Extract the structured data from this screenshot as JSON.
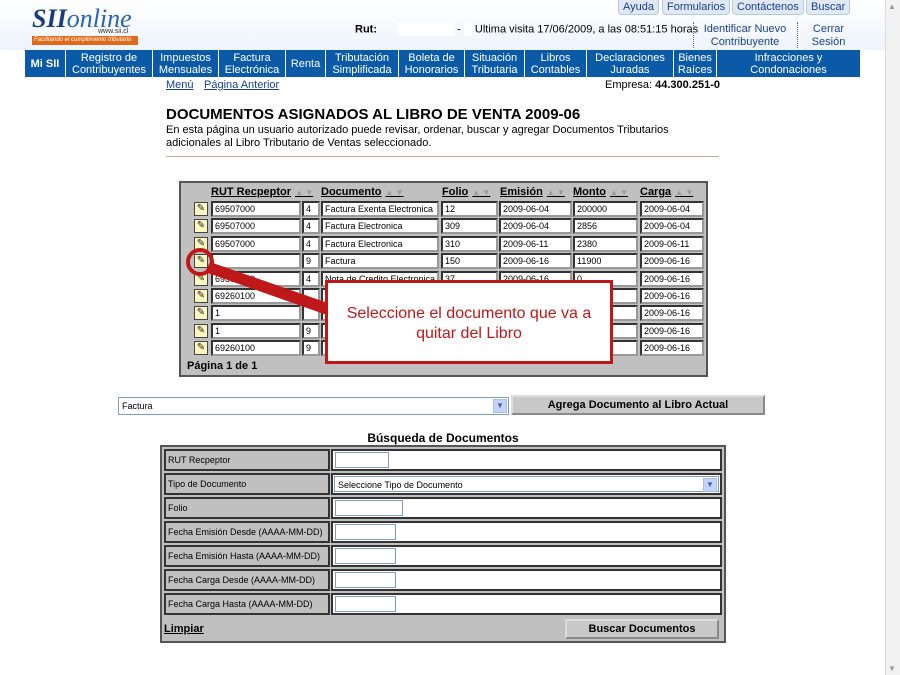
{
  "header": {
    "logo_text": "SII online",
    "logo_site": "www.sii.cl",
    "logo_tagline": "Facilitando el cumplimiento tributario",
    "top_links": [
      "Ayuda",
      "Formularios",
      "Contáctenos",
      "Buscar"
    ],
    "rut_label": "Rut:",
    "rut_sep": "-",
    "last_visit": "Ultima visita 17/06/2009, a las 08:51:15 horas",
    "identify_new": "Identificar Nuevo Contribuyente",
    "logout": "Cerrar Sesión"
  },
  "nav": [
    "Mi SII",
    "Registro de Contribuyentes",
    "Impuestos Mensuales",
    "Factura Electrónica",
    "Renta",
    "Tributación Simplificada",
    "Boleta de Honorarios",
    "Situación Tributaria",
    "Libros Contables",
    "Declaraciones Juradas",
    "Bienes Raíces",
    "Infracciones y Condonaciones"
  ],
  "subnav": {
    "menu": "Menú",
    "back": "Página Anterior",
    "empresa_label": "Empresa:",
    "empresa_value": "44.300.251-0"
  },
  "page": {
    "title": "DOCUMENTOS ASIGNADOS AL LIBRO DE VENTA 2009-06",
    "description": "En esta página un usuario autorizado puede revisar, ordenar, buscar y agregar Documentos Tributarios adicionales al Libro Tributario de Ventas seleccionado."
  },
  "grid": {
    "columns": [
      "RUT Recpeptor",
      "Documento",
      "Folio",
      "Emisión",
      "Monto",
      "Carga"
    ],
    "rows": [
      [
        "69507000",
        "4",
        "Factura Exenta Electronica",
        "12",
        "2009-06-04",
        "200000",
        "2009-06-04"
      ],
      [
        "69507000",
        "4",
        "Factura Electronica",
        "309",
        "2009-06-04",
        "2856",
        "2009-06-04"
      ],
      [
        "69507000",
        "4",
        "Factura Electronica",
        "310",
        "2009-06-11",
        "2380",
        "2009-06-11"
      ],
      [
        "",
        "9",
        "Factura",
        "150",
        "2009-06-16",
        "11900",
        "2009-06-16"
      ],
      [
        "69507000",
        "4",
        "Nota de Credito Electronica",
        "37",
        "2009-06-16",
        "0",
        "2009-06-16"
      ],
      [
        "69260100",
        "",
        "",
        "",
        "",
        "",
        "2009-06-16"
      ],
      [
        "1",
        "",
        "",
        "",
        "",
        "",
        "2009-06-16"
      ],
      [
        "1",
        "9",
        "",
        "",
        "",
        "",
        "2009-06-16"
      ],
      [
        "69260100",
        "9",
        "",
        "",
        "",
        "",
        "2009-06-16"
      ]
    ],
    "pagination": "Página 1 de 1"
  },
  "callout": {
    "text": "Seleccione el documento que va a quitar del Libro",
    "color": "#c01818"
  },
  "add": {
    "selected_type": "Factura",
    "button": "Agrega Documento al Libro Actual"
  },
  "search": {
    "title": "Búsqueda de Documentos",
    "fields": [
      "RUT Recpeptor",
      "Tipo de Documento",
      "Folio",
      "Fecha Emisión Desde (AAAA-MM-DD)",
      "Fecha Emisión Hasta (AAAA-MM-DD)",
      "Fecha Carga Desde (AAAA-MM-DD)",
      "Fecha Carga Hasta (AAAA-MM-DD)"
    ],
    "tipo_placeholder": "Seleccione Tipo de Documento",
    "clear": "Limpiar",
    "submit": "Buscar Documentos"
  },
  "colors": {
    "nav": "#0b5aa8",
    "accent": "#c01818"
  }
}
